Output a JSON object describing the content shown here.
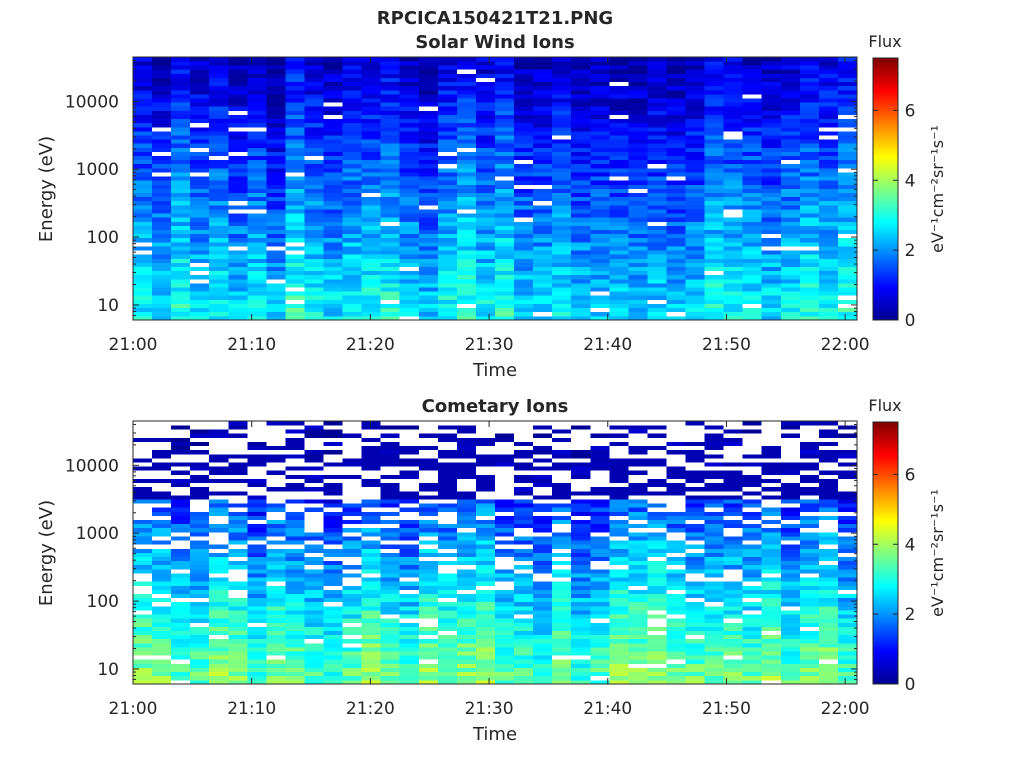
{
  "figure_title": "RPCICA150421T21.PNG",
  "colors": {
    "jet_stops": [
      "#00008f",
      "#0000ff",
      "#0080ff",
      "#00ffff",
      "#80ff80",
      "#ffff00",
      "#ff8000",
      "#ff0000",
      "#800000"
    ],
    "axis": "#262626",
    "background": "#ffffff"
  },
  "chart_data": [
    {
      "type": "heatmap",
      "title": "Solar Wind Ions",
      "xlabel": "Time",
      "ylabel": "Energy (eV)",
      "x_ticks": [
        "21:00",
        "21:10",
        "21:20",
        "21:30",
        "21:40",
        "21:50",
        "22:00"
      ],
      "xlim": [
        "21:00",
        "22:01"
      ],
      "y_scale": "log",
      "y_ticks": [
        "10",
        "100",
        "1000",
        "10000"
      ],
      "ylim": [
        6,
        45000
      ],
      "colorbar": {
        "title": "Flux",
        "label": "eV⁻¹cm⁻²sr⁻¹s⁻¹",
        "ticks": [
          "0",
          "2",
          "4",
          "6"
        ],
        "range": [
          0,
          7.5
        ]
      },
      "flux_profile": {
        "low_energy_eV": 10,
        "low_flux": 2.7,
        "high_energy_eV": 40000,
        "high_flux": 0.5
      }
    },
    {
      "type": "heatmap",
      "title": "Cometary Ions",
      "xlabel": "Time",
      "ylabel": "Energy (eV)",
      "x_ticks": [
        "21:00",
        "21:10",
        "21:20",
        "21:30",
        "21:40",
        "21:50",
        "22:00"
      ],
      "xlim": [
        "21:00",
        "22:01"
      ],
      "y_scale": "log",
      "y_ticks": [
        "10",
        "100",
        "1000",
        "10000"
      ],
      "ylim": [
        6,
        45000
      ],
      "colorbar": {
        "title": "Flux",
        "label": "eV⁻¹cm⁻²sr⁻¹s⁻¹",
        "ticks": [
          "0",
          "2",
          "4",
          "6"
        ],
        "range": [
          0,
          7.5
        ]
      },
      "flux_profile": {
        "low_energy_eV": 8,
        "low_flux": 3.6,
        "high_energy_eV": 40000,
        "high_flux": 0.4
      }
    }
  ]
}
